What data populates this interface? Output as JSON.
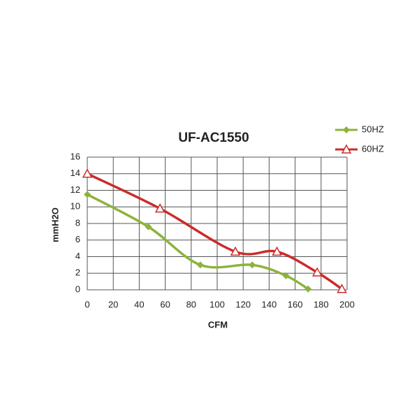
{
  "chart_data": {
    "type": "line",
    "title": "UF-AC1550",
    "x_label": "CFM",
    "y_label": "mmH2O",
    "xlim": [
      0,
      200
    ],
    "xticks": [
      0,
      20,
      40,
      60,
      80,
      100,
      120,
      140,
      160,
      180,
      200
    ],
    "ylim": [
      0,
      16
    ],
    "yticks": [
      0,
      2,
      4,
      6,
      8,
      10,
      12,
      14,
      16
    ],
    "grid": true,
    "smooth": true,
    "legend": "top-right",
    "series": [
      {
        "name": "50HZ",
        "color": "#8db33a",
        "marker": "diamond",
        "x": [
          0,
          47,
          87,
          127,
          153,
          170
        ],
        "values": [
          11.5,
          7.6,
          3.0,
          3.0,
          1.7,
          0.1
        ]
      },
      {
        "name": "60HZ",
        "color": "#cc2b2b",
        "marker": "triangle",
        "x": [
          0,
          56,
          114,
          146,
          177,
          196
        ],
        "values": [
          14,
          9.8,
          4.6,
          4.6,
          2.1,
          0.1
        ]
      }
    ]
  }
}
